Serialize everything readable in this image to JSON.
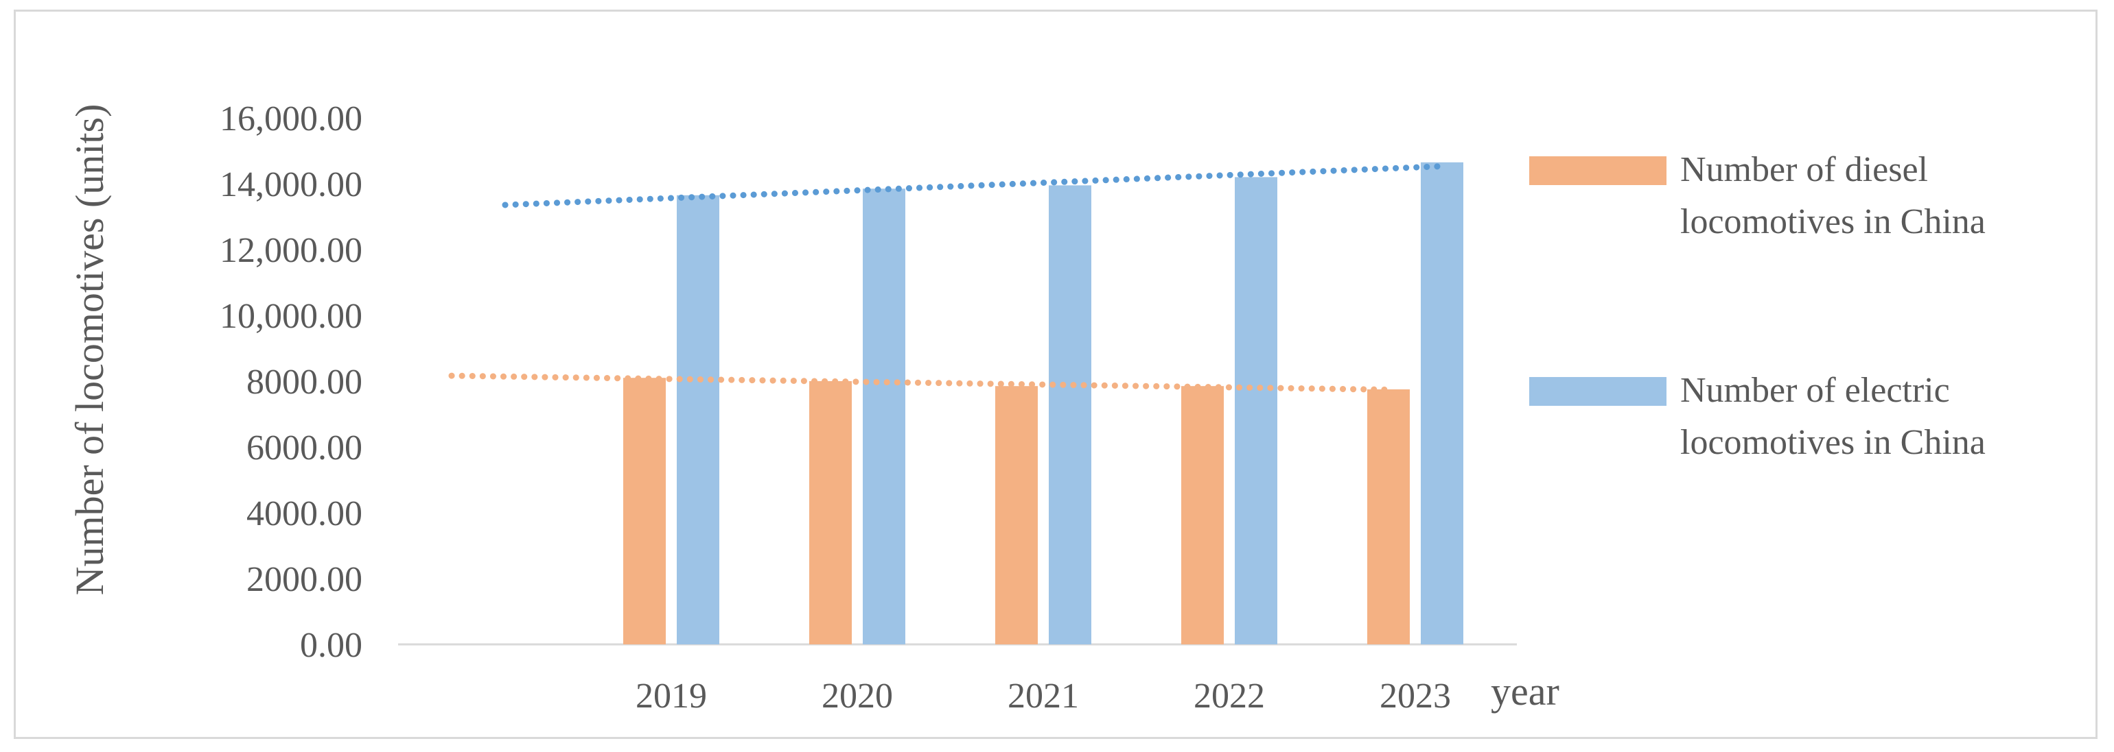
{
  "chart_data": {
    "type": "bar",
    "categories": [
      "2019",
      "2020",
      "2021",
      "2022",
      "2023"
    ],
    "series": [
      {
        "name": "Number of diesel locomotives in China",
        "values": [
          8100,
          8000,
          7850,
          7850,
          7750
        ],
        "color": "#f4b183",
        "trendline": "linear"
      },
      {
        "name": "Number of electric locomotives in China",
        "values": [
          13650,
          13850,
          13950,
          14200,
          14650
        ],
        "color": "#9dc3e6",
        "trendline": "linear"
      }
    ],
    "trendline_colors": [
      "#f4b183",
      "#5b9bd5"
    ],
    "xlabel": "year",
    "ylabel": "Number of locomotives (units)",
    "ylim": [
      0,
      16000
    ],
    "yticks": [
      "0.00",
      "2000.00",
      "4000.00",
      "6000.00",
      "8000.00",
      "10,000.00",
      "12,000.00",
      "14,000.00",
      "16,000.00"
    ],
    "grid": false,
    "legend_position": "right"
  }
}
